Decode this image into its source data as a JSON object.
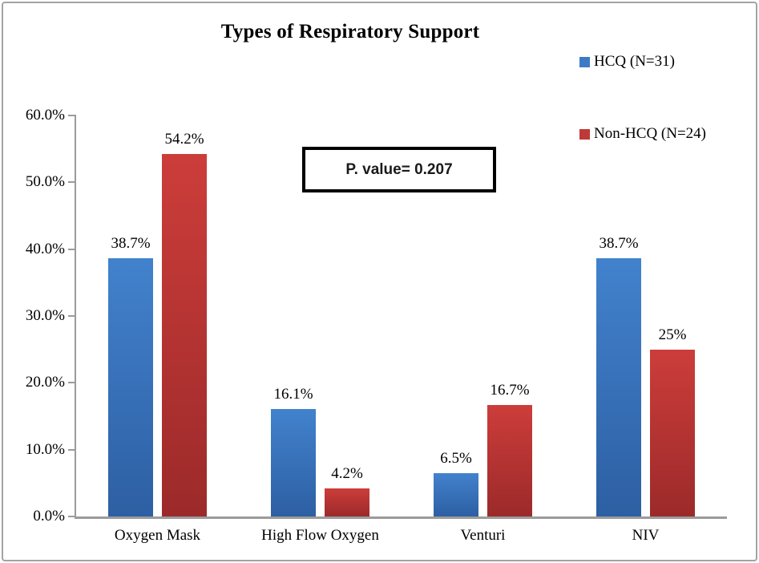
{
  "window": {
    "background_color": "#ffffff",
    "border_color": "#a3a3a3"
  },
  "chart_data": {
    "type": "bar",
    "title": "Types of Respiratory Support",
    "categories": [
      "Oxygen Mask",
      "High Flow Oxygen",
      "Venturi",
      "NIV"
    ],
    "series": [
      {
        "name": "HCQ (N=31)",
        "values": [
          38.7,
          16.1,
          6.5,
          38.7
        ],
        "labels": [
          "38.7%",
          "16.1%",
          "6.5%",
          "38.7%"
        ],
        "color": "#3d7ac6",
        "gradient_top": "#4282cd",
        "gradient_bottom": "#2d5fa3"
      },
      {
        "name": "Non-HCQ (N=24)",
        "values": [
          54.2,
          4.2,
          16.7,
          25
        ],
        "labels": [
          "54.2%",
          "4.2%",
          "16.7%",
          "25%"
        ],
        "color": "#be3a38",
        "gradient_top": "#cc3d3a",
        "gradient_bottom": "#9c2a2a"
      }
    ],
    "xlabel": "",
    "ylabel": "",
    "ylim": [
      0,
      60
    ],
    "ytick_step": 10,
    "ytick_labels": [
      "0.0%",
      "10.0%",
      "20.0%",
      "30.0%",
      "40.0%",
      "50.0%",
      "60.0%"
    ],
    "grid": false,
    "legend_position": "top-right",
    "axis_color": "#9b9b9b",
    "annotations": [
      "P. value= 0.207"
    ]
  }
}
